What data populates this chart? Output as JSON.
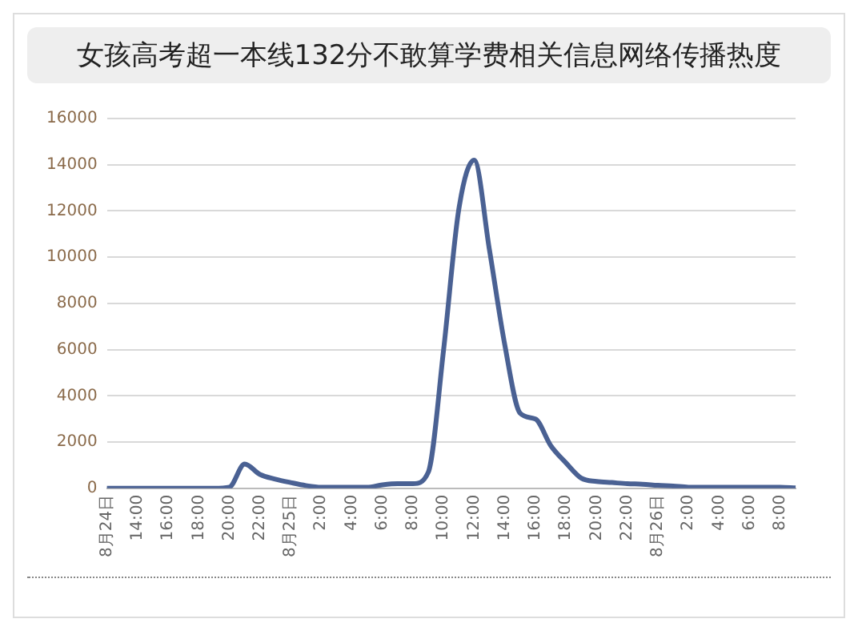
{
  "chart_data": {
    "type": "line",
    "title": "女孩高考超一本线132分不敢算学费相关信息网络传播热度",
    "categories": [
      "8月24日",
      null,
      "14:00",
      null,
      "16:00",
      null,
      "18:00",
      null,
      "20:00",
      null,
      "22:00",
      null,
      "8月25日",
      null,
      "2:00",
      null,
      "4:00",
      null,
      "6:00",
      null,
      "8:00",
      null,
      "10:00",
      null,
      "12:00",
      null,
      "14:00",
      null,
      "16:00",
      null,
      "18:00",
      null,
      "20:00",
      null,
      "22:00",
      null,
      "8月26日",
      null,
      "2:00",
      null,
      "4:00",
      null,
      "6:00",
      null,
      "8:00",
      null
    ],
    "series": [
      {
        "color": "#4a6193",
        "values": [
          0,
          0,
          0,
          0,
          0,
          0,
          0,
          0,
          50,
          1050,
          600,
          400,
          250,
          120,
          50,
          50,
          50,
          50,
          150,
          200,
          200,
          700,
          6000,
          12100,
          14200,
          10300,
          6200,
          3250,
          3000,
          1850,
          1100,
          440,
          300,
          250,
          200,
          180,
          130,
          100,
          50,
          50,
          50,
          50,
          50,
          50,
          50,
          20
        ]
      }
    ],
    "ylim": [
      0,
      16000
    ],
    "yticks": [
      0,
      2000,
      4000,
      6000,
      8000,
      10000,
      12000,
      14000,
      16000
    ],
    "grid": "y",
    "legend": false,
    "marker": "none",
    "line_style": "solid"
  }
}
